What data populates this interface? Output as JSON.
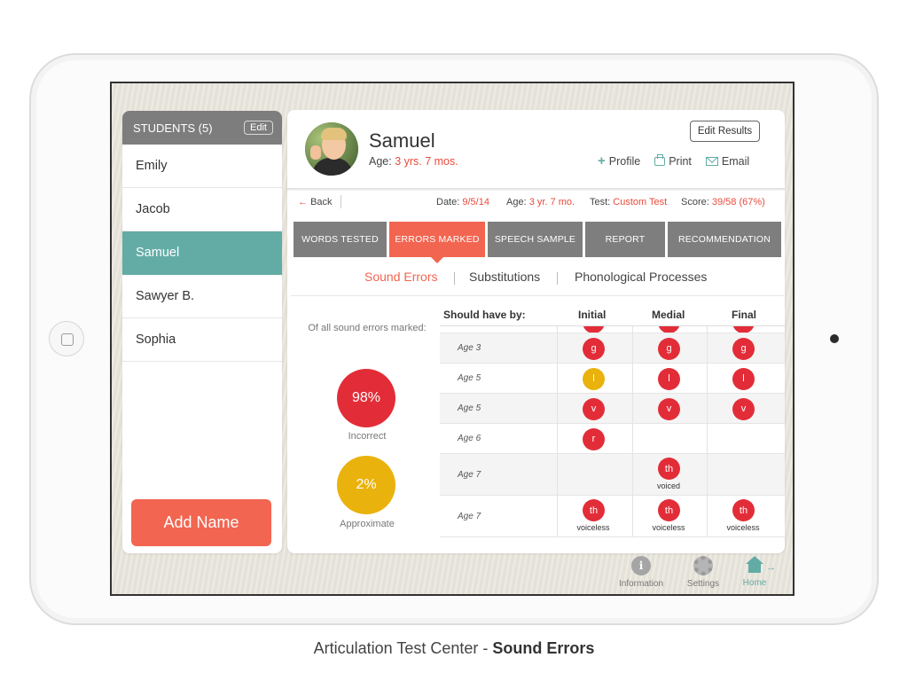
{
  "sidebar": {
    "header": "STUDENTS (5)",
    "edit_label": "Edit",
    "students": [
      "Emily",
      "Jacob",
      "Samuel",
      "Sawyer B.",
      "Sophia"
    ],
    "active_index": 2,
    "add_label": "Add Name"
  },
  "profile": {
    "name": "Samuel",
    "age_label": "Age: ",
    "age_value": "3 yrs. 7 mos.",
    "edit_results": "Edit Results",
    "profile_label": "Profile",
    "print_label": "Print",
    "email_label": "Email"
  },
  "infobar": {
    "back_label": "Back",
    "date_label": "Date: ",
    "date_value": "9/5/14",
    "age_label": "Age: ",
    "age_value": "3 yr. 7 mo.",
    "test_label": "Test: ",
    "test_value": "Custom Test",
    "score_label": "Score: ",
    "score_value": "39/58 (67%)"
  },
  "tabs": [
    "WORDS TESTED",
    "ERRORS MARKED",
    "SPEECH SAMPLE",
    "REPORT",
    "RECOMMENDATION"
  ],
  "subtabs": [
    "Sound Errors",
    "Substitutions",
    "Phonological Processes"
  ],
  "stats": {
    "intro": "Of all sound errors marked:",
    "incorrect_value": "98%",
    "incorrect_label": "Incorrect",
    "approximate_value": "2%",
    "approximate_label": "Approximate"
  },
  "table": {
    "headers": [
      "Should have by:",
      "Initial",
      "Medial",
      "Final"
    ],
    "rows": [
      {
        "age": "Age 3",
        "initial": "g",
        "medial": "g",
        "final": "g"
      },
      {
        "age": "Age 5",
        "initial": "l",
        "medial": "l",
        "final": "l",
        "initial_color": "yellow"
      },
      {
        "age": "Age 5",
        "initial": "v",
        "medial": "v",
        "final": "v"
      },
      {
        "age": "Age 6",
        "initial": "r"
      },
      {
        "age": "Age 7",
        "medial": "th",
        "medial_sub": "voiced"
      },
      {
        "age": "Age 7",
        "initial": "th",
        "medial": "th",
        "final": "th",
        "initial_sub": "voiceless",
        "medial_sub": "voiceless",
        "final_sub": "voiceless"
      }
    ]
  },
  "bottom_nav": [
    "Information",
    "Settings",
    "Home"
  ],
  "caption": {
    "prefix": "Articulation Test Center - ",
    "bold": "Sound Errors"
  },
  "colors": {
    "accent_red": "#f26550",
    "teal": "#63aca6",
    "dot_red": "#e22d38",
    "dot_yellow": "#eab20c"
  }
}
